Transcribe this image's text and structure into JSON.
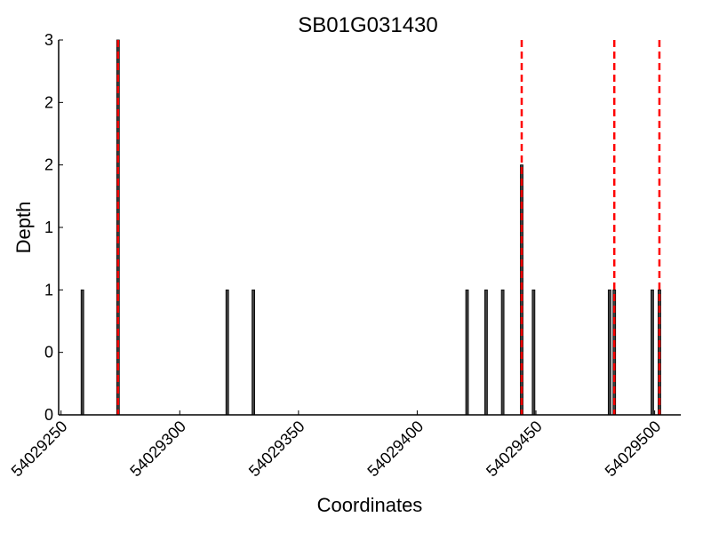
{
  "chart_data": {
    "type": "bar",
    "title": "SB01G031430",
    "xlabel": "Coordinates",
    "ylabel": "Depth",
    "xlim": [
      54029249,
      54029511
    ],
    "ylim": [
      0,
      3
    ],
    "x_ticks": [
      54029250,
      54029300,
      54029350,
      54029400,
      54029450,
      54029500
    ],
    "x_tick_labels": [
      "54029250",
      "54029300",
      "54029350",
      "54029400",
      "54029450",
      "54029500"
    ],
    "y_ticks": [
      0,
      0.5,
      1,
      1.5,
      2,
      2.5,
      3
    ],
    "y_tick_labels": [
      "0",
      "0",
      "1",
      "1",
      "2",
      "2",
      "3"
    ],
    "grid": false,
    "bar_color": "#404040",
    "marker_color": "#ff0000",
    "bars": {
      "x": [
        54029259,
        54029274,
        54029320,
        54029331,
        54029421,
        54029429,
        54029436,
        54029444,
        54029449,
        54029481,
        54029483,
        54029499,
        54029502
      ],
      "values": [
        1,
        3,
        1,
        1,
        1,
        1,
        1,
        2,
        1,
        1,
        1,
        1,
        1
      ]
    },
    "vertical_markers": {
      "style": "dashed",
      "x": [
        54029274,
        54029444,
        54029483,
        54029502
      ]
    }
  }
}
